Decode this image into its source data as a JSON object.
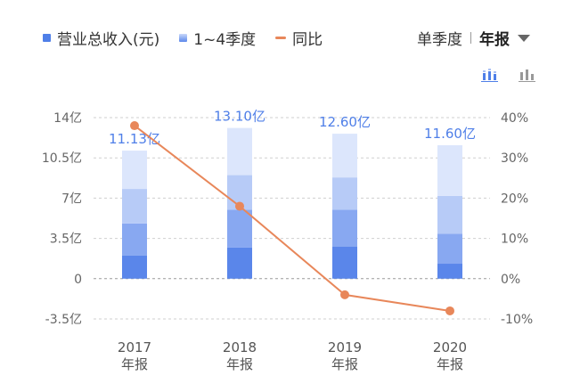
{
  "legend": {
    "revenue_label": "营业总收入(元)",
    "quarter_label": "1~4季度",
    "yoy_label": "同比",
    "colors": {
      "revenue": "#4f7fe8",
      "yoy": "#e8875a"
    }
  },
  "period_toggle": {
    "single_quarter": "单季度",
    "annual": "年报",
    "selected": "年报"
  },
  "chart_view_icons": [
    "stacked-bar-chart-icon",
    "bar-chart-icon"
  ],
  "chart_data": {
    "type": "bar",
    "categories": [
      "2017",
      "2018",
      "2019",
      "2020"
    ],
    "category_sublabels": [
      "年报",
      "年报",
      "年报",
      "年报"
    ],
    "totals": [
      11.13,
      13.1,
      12.6,
      11.6
    ],
    "total_labels": [
      "11.13亿",
      "13.10亿",
      "12.60亿",
      "11.60亿"
    ],
    "series": [
      {
        "name": "",
        "values": [
          2.0,
          2.7,
          2.8,
          1.3
        ],
        "color": "#5a86ea"
      },
      {
        "name": "",
        "values": [
          2.8,
          3.3,
          3.2,
          2.6
        ],
        "color": "#88a8f1"
      },
      {
        "name": "",
        "values": [
          3.0,
          3.0,
          2.8,
          3.3
        ],
        "color": "#b7cbf7"
      },
      {
        "name": "",
        "values": [
          3.33,
          4.1,
          3.8,
          4.4
        ],
        "color": "#dce6fc"
      }
    ],
    "yoy": {
      "name": "同比",
      "values": [
        38,
        18,
        -4,
        -8
      ],
      "color": "#e8875a"
    },
    "left_axis": {
      "ticks": [
        -3.5,
        0,
        3.5,
        7,
        10.5,
        14
      ],
      "tick_labels": [
        "-3.5亿",
        "0",
        "3.5亿",
        "7亿",
        "10.5亿",
        "14亿"
      ],
      "ylim": [
        -3.5,
        14
      ]
    },
    "right_axis": {
      "ticks": [
        -10,
        0,
        10,
        20,
        30,
        40
      ],
      "tick_labels": [
        "-10%",
        "0%",
        "10%",
        "20%",
        "30%",
        "40%"
      ],
      "ylim": [
        -10,
        40
      ]
    }
  }
}
